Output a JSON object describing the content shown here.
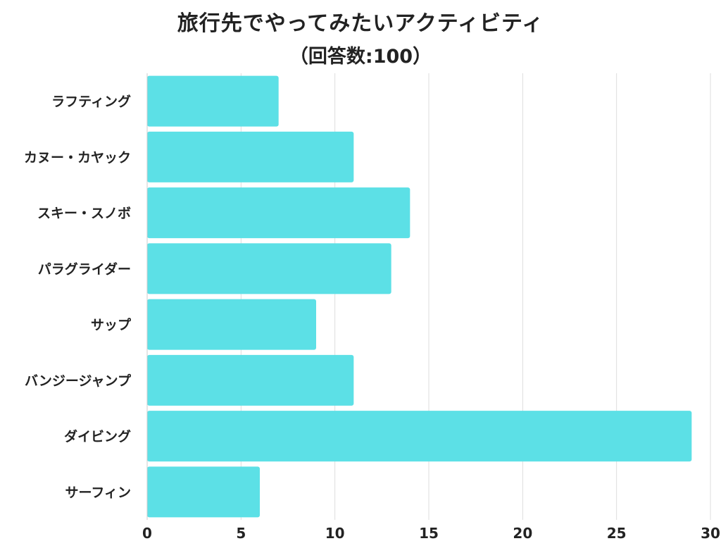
{
  "chart_data": {
    "type": "bar",
    "orientation": "horizontal",
    "title": "旅行先でやってみたいアクティビティ",
    "subtitle": "（回答数:100）",
    "xlabel": "",
    "ylabel": "",
    "categories": [
      "ラフティング",
      "カヌー・カヤック",
      "スキー・スノボ",
      "パラグライダー",
      "サップ",
      "バンジージャンプ",
      "ダイビング",
      "サーフィン"
    ],
    "values": [
      7,
      11,
      14,
      13,
      9,
      11,
      29,
      6
    ],
    "xlim": [
      0,
      30
    ],
    "xticks": [
      "0",
      "5",
      "10",
      "15",
      "20",
      "25",
      "30"
    ],
    "grid": true,
    "legend": "none",
    "bar_color": "#5ce0e6",
    "grid_color": "#dddddd",
    "text_color": "#222222"
  }
}
